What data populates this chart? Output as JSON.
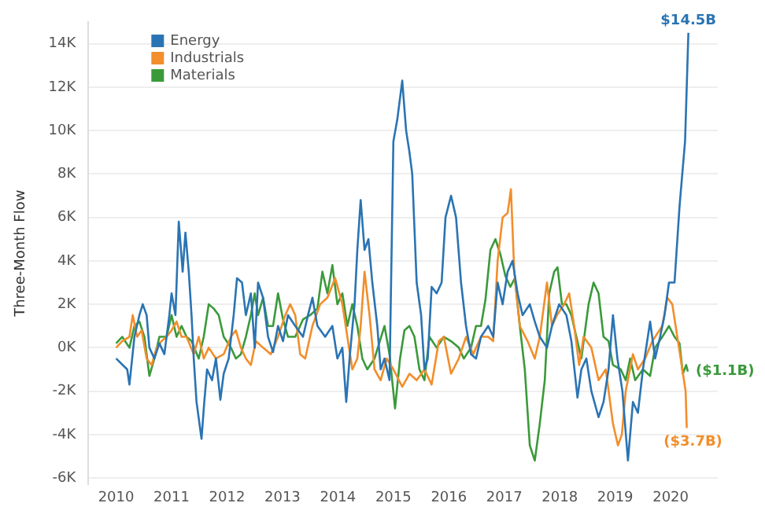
{
  "chart_data": {
    "type": "line",
    "ylabel": "Three-Month Flow",
    "xlim": [
      2009.5,
      2020.85
    ],
    "xticks": [
      2010,
      2011,
      2012,
      2013,
      2014,
      2015,
      2016,
      2017,
      2018,
      2019,
      2020
    ],
    "ylim": [
      -6300,
      15000
    ],
    "yticks": [
      {
        "value": -6000,
        "label": "-6K"
      },
      {
        "value": -4000,
        "label": "-4K"
      },
      {
        "value": -2000,
        "label": "-2K"
      },
      {
        "value": 0,
        "label": "0K"
      },
      {
        "value": 2000,
        "label": "2K"
      },
      {
        "value": 4000,
        "label": "4K"
      },
      {
        "value": 6000,
        "label": "6K"
      },
      {
        "value": 8000,
        "label": "8K"
      },
      {
        "value": 10000,
        "label": "10K"
      },
      {
        "value": 12000,
        "label": "12K"
      },
      {
        "value": 14000,
        "label": "14K"
      }
    ],
    "grid": "y",
    "legend": "top left",
    "marker": "none",
    "line_style": "solid",
    "annotations": [
      {
        "text": "$14.5B",
        "x": 2020.32,
        "y": 14500
      },
      {
        "text": "($1.1B)",
        "x": 2020.31,
        "y": -1100
      },
      {
        "text": "($3.7B)",
        "x": 2020.29,
        "y": -3700
      }
    ],
    "series": [
      {
        "name": "Energy",
        "color": "#2a74b3",
        "x": [
          2010.0,
          2010.2,
          2010.24,
          2010.33,
          2010.42,
          2010.48,
          2010.55,
          2010.6,
          2010.69,
          2010.78,
          2010.87,
          2010.96,
          2011.0,
          2011.07,
          2011.13,
          2011.2,
          2011.25,
          2011.31,
          2011.36,
          2011.4,
          2011.45,
          2011.54,
          2011.59,
          2011.64,
          2011.73,
          2011.8,
          2011.88,
          2011.94,
          2012.03,
          2012.12,
          2012.18,
          2012.27,
          2012.34,
          2012.43,
          2012.5,
          2012.56,
          2012.65,
          2012.74,
          2012.83,
          2012.92,
          2013.01,
          2013.1,
          2013.23,
          2013.37,
          2013.46,
          2013.54,
          2013.63,
          2013.77,
          2013.9,
          2013.99,
          2014.08,
          2014.15,
          2014.21,
          2014.3,
          2014.35,
          2014.41,
          2014.48,
          2014.55,
          2014.62,
          2014.71,
          2014.77,
          2014.84,
          2014.93,
          2015.0,
          2015.07,
          2015.16,
          2015.23,
          2015.29,
          2015.34,
          2015.42,
          2015.5,
          2015.56,
          2015.62,
          2015.69,
          2015.78,
          2015.87,
          2015.94,
          2016.04,
          2016.13,
          2016.22,
          2016.31,
          2016.4,
          2016.49,
          2016.58,
          2016.71,
          2016.8,
          2016.88,
          2016.97,
          2017.06,
          2017.15,
          2017.24,
          2017.33,
          2017.46,
          2017.55,
          2017.64,
          2017.77,
          2017.86,
          2017.99,
          2018.12,
          2018.21,
          2018.32,
          2018.39,
          2018.48,
          2018.57,
          2018.7,
          2018.79,
          2018.88,
          2018.96,
          2019.04,
          2019.13,
          2019.23,
          2019.32,
          2019.41,
          2019.5,
          2019.63,
          2019.72,
          2019.81,
          2019.89,
          2019.97,
          2020.07,
          2020.16,
          2020.26,
          2020.32
        ],
        "values": [
          -500,
          -1000,
          -1700,
          500,
          1500,
          2000,
          1500,
          0,
          -500,
          200,
          -300,
          1500,
          2500,
          1500,
          5800,
          3500,
          5300,
          3500,
          1500,
          -500,
          -2500,
          -4200,
          -2500,
          -1000,
          -1500,
          -500,
          -2400,
          -1200,
          -500,
          1500,
          3200,
          3000,
          1500,
          2500,
          0,
          3000,
          2300,
          500,
          -200,
          1000,
          300,
          1500,
          1000,
          500,
          1500,
          2300,
          1000,
          500,
          1000,
          -500,
          0,
          -2500,
          -500,
          2000,
          4500,
          6800,
          4500,
          5000,
          3000,
          1000,
          -1000,
          -500,
          -1500,
          9500,
          10500,
          12300,
          10000,
          9000,
          8000,
          3000,
          1500,
          -1000,
          -500,
          2800,
          2500,
          3000,
          6000,
          7000,
          6000,
          3000,
          1000,
          -300,
          -500,
          500,
          1000,
          500,
          3000,
          2000,
          3500,
          4000,
          2500,
          1500,
          2000,
          1200,
          500,
          0,
          1000,
          2000,
          1500,
          300,
          -2300,
          -1000,
          -500,
          -2000,
          -3200,
          -2500,
          -1000,
          1500,
          -500,
          -2000,
          -5200,
          -2500,
          -3000,
          -1000,
          1200,
          -500,
          500,
          1500,
          3000,
          3000,
          6500,
          9500,
          14500
        ]
      },
      {
        "name": "Industrials",
        "color": "#f28e2b",
        "x": [
          2010.0,
          2010.11,
          2010.24,
          2010.3,
          2010.38,
          2010.46,
          2010.55,
          2010.64,
          2010.73,
          2010.82,
          2010.91,
          2011.0,
          2011.09,
          2011.18,
          2011.27,
          2011.4,
          2011.49,
          2011.58,
          2011.67,
          2011.8,
          2011.94,
          2012.07,
          2012.16,
          2012.25,
          2012.34,
          2012.43,
          2012.52,
          2012.65,
          2012.79,
          2012.92,
          2013.05,
          2013.14,
          2013.23,
          2013.32,
          2013.41,
          2013.54,
          2013.68,
          2013.81,
          2013.95,
          2014.08,
          2014.17,
          2014.26,
          2014.35,
          2014.41,
          2014.48,
          2014.57,
          2014.66,
          2014.77,
          2014.88,
          2015.0,
          2015.16,
          2015.29,
          2015.42,
          2015.56,
          2015.69,
          2015.82,
          2015.91,
          2016.04,
          2016.18,
          2016.31,
          2016.44,
          2016.58,
          2016.71,
          2016.8,
          2016.88,
          2016.97,
          2017.06,
          2017.12,
          2017.18,
          2017.28,
          2017.42,
          2017.55,
          2017.64,
          2017.77,
          2017.86,
          2017.95,
          2018.08,
          2018.17,
          2018.26,
          2018.35,
          2018.43,
          2018.57,
          2018.7,
          2018.83,
          2018.96,
          2019.05,
          2019.12,
          2019.19,
          2019.32,
          2019.41,
          2019.54,
          2019.67,
          2019.85,
          2019.94,
          2020.03,
          2020.12,
          2020.21,
          2020.27,
          2020.29
        ],
        "values": [
          0,
          300,
          500,
          1500,
          500,
          800,
          -500,
          -800,
          0,
          300,
          500,
          800,
          1200,
          500,
          500,
          -300,
          500,
          -500,
          0,
          -500,
          -300,
          500,
          800,
          0,
          -500,
          -800,
          300,
          0,
          -300,
          500,
          1500,
          2000,
          1500,
          -300,
          -500,
          1000,
          2000,
          2300,
          3200,
          2000,
          500,
          -1000,
          -500,
          1000,
          3500,
          1500,
          -1000,
          -1500,
          -500,
          -1000,
          -1800,
          -1200,
          -1500,
          -1000,
          -1700,
          300,
          500,
          -1200,
          -500,
          500,
          -300,
          500,
          500,
          300,
          4000,
          6000,
          6200,
          7300,
          3500,
          1000,
          300,
          -500,
          500,
          3000,
          1000,
          1500,
          2000,
          2500,
          1000,
          -800,
          500,
          0,
          -1500,
          -1000,
          -3500,
          -4500,
          -4000,
          -2000,
          -300,
          -1000,
          -500,
          300,
          1000,
          2300,
          2000,
          500,
          -1000,
          -2000,
          -3700
        ]
      },
      {
        "name": "Materials",
        "color": "#3a9a3a",
        "x": [
          2010.0,
          2010.11,
          2010.24,
          2010.33,
          2010.42,
          2010.51,
          2010.6,
          2010.69,
          2010.78,
          2010.91,
          2011.0,
          2011.09,
          2011.18,
          2011.27,
          2011.36,
          2011.49,
          2011.58,
          2011.67,
          2011.76,
          2011.85,
          2011.94,
          2012.07,
          2012.16,
          2012.25,
          2012.34,
          2012.43,
          2012.5,
          2012.56,
          2012.65,
          2012.74,
          2012.83,
          2012.92,
          2013.01,
          2013.1,
          2013.23,
          2013.37,
          2013.5,
          2013.63,
          2013.72,
          2013.81,
          2013.9,
          2013.99,
          2014.08,
          2014.17,
          2014.26,
          2014.35,
          2014.44,
          2014.53,
          2014.66,
          2014.84,
          2014.93,
          2015.03,
          2015.12,
          2015.2,
          2015.29,
          2015.38,
          2015.47,
          2015.56,
          2015.65,
          2015.78,
          2015.91,
          2016.04,
          2016.18,
          2016.27,
          2016.4,
          2016.49,
          2016.58,
          2016.66,
          2016.75,
          2016.84,
          2016.93,
          2017.02,
          2017.11,
          2017.19,
          2017.28,
          2017.37,
          2017.46,
          2017.55,
          2017.64,
          2017.73,
          2017.81,
          2017.9,
          2017.96,
          2018.04,
          2018.12,
          2018.21,
          2018.3,
          2018.39,
          2018.52,
          2018.61,
          2018.7,
          2018.79,
          2018.88,
          2018.96,
          2019.1,
          2019.19,
          2019.27,
          2019.36,
          2019.5,
          2019.63,
          2019.72,
          2019.85,
          2019.97,
          2020.07,
          2020.16,
          2020.22,
          2020.28,
          2020.31
        ],
        "values": [
          200,
          500,
          0,
          1000,
          1200,
          500,
          -1300,
          -500,
          500,
          500,
          1500,
          500,
          1000,
          500,
          300,
          -500,
          500,
          2000,
          1800,
          1500,
          500,
          0,
          -500,
          -300,
          500,
          1500,
          2500,
          1500,
          2300,
          1000,
          1000,
          2500,
          1300,
          500,
          500,
          1300,
          1500,
          1800,
          3500,
          2500,
          3800,
          2000,
          2500,
          1000,
          2000,
          1000,
          -500,
          -1000,
          -500,
          1000,
          -300,
          -2800,
          -500,
          800,
          1000,
          500,
          -1000,
          -1500,
          500,
          0,
          500,
          300,
          0,
          -500,
          0,
          1000,
          1000,
          2200,
          4500,
          5000,
          4300,
          3300,
          2800,
          3200,
          1000,
          -1000,
          -4500,
          -5200,
          -3500,
          -1500,
          2500,
          3500,
          3700,
          2000,
          2000,
          1500,
          500,
          -500,
          2000,
          3000,
          2500,
          500,
          300,
          -800,
          -1000,
          -1500,
          -500,
          -1500,
          -1000,
          -1300,
          0,
          500,
          1000,
          500,
          200,
          -1200,
          -800,
          -1100
        ]
      }
    ]
  }
}
